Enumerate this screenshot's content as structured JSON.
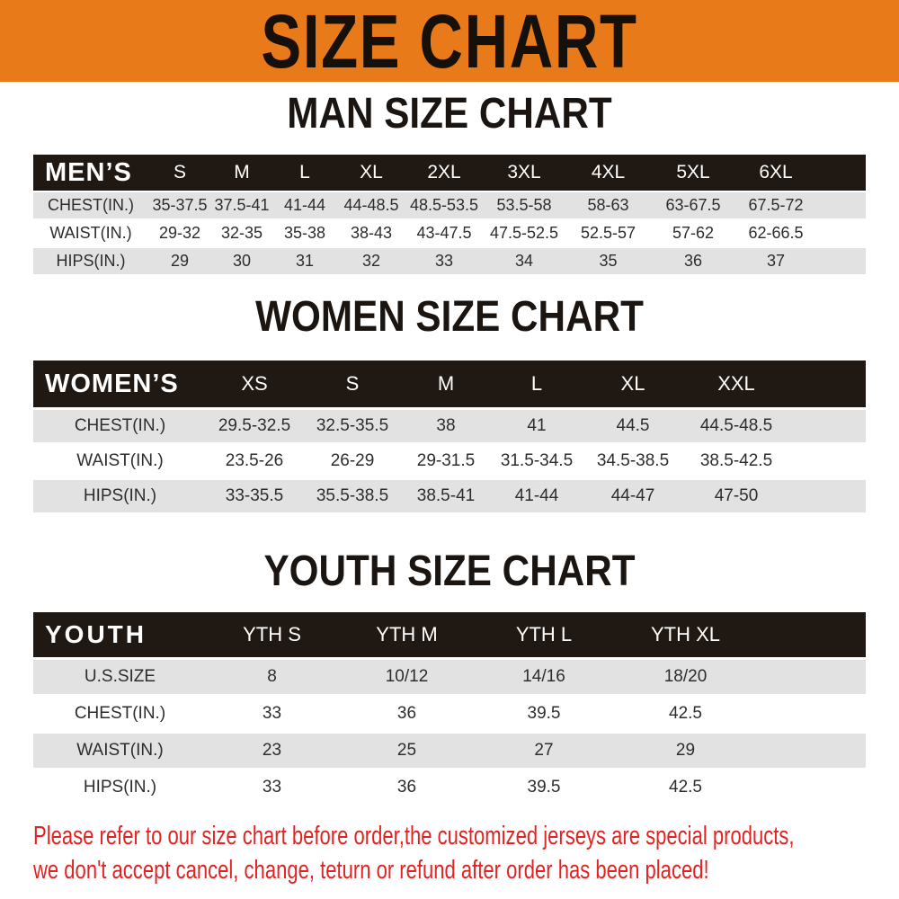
{
  "banner": {
    "title": "SIZE CHART"
  },
  "sections": [
    {
      "heading": "MAN SIZE CHART",
      "table": {
        "label": "MEN’S",
        "columns": [
          "S",
          "M",
          "L",
          "XL",
          "2XL",
          "3XL",
          "4XL",
          "5XL",
          "6XL"
        ],
        "rows": [
          {
            "label": "CHEST(IN.)",
            "values": [
              "35-37.5",
              "37.5-41",
              "41-44",
              "44-48.5",
              "48.5-53.5",
              "53.5-58",
              "58-63",
              "63-67.5",
              "67.5-72"
            ]
          },
          {
            "label": "WAIST(IN.)",
            "values": [
              "29-32",
              "32-35",
              "35-38",
              "38-43",
              "43-47.5",
              "47.5-52.5",
              "52.5-57",
              "57-62",
              "62-66.5"
            ]
          },
          {
            "label": "HIPS(IN.)",
            "values": [
              "29",
              "30",
              "31",
              "32",
              "33",
              "34",
              "35",
              "36",
              "37"
            ]
          }
        ]
      }
    },
    {
      "heading": "WOMEN SIZE CHART",
      "table": {
        "label": "WOMEN’S",
        "columns": [
          "XS",
          "S",
          "M",
          "L",
          "XL",
          "XXL"
        ],
        "rows": [
          {
            "label": "CHEST(IN.)",
            "values": [
              "29.5-32.5",
              "32.5-35.5",
              "38",
              "41",
              "44.5",
              "44.5-48.5"
            ]
          },
          {
            "label": "WAIST(IN.)",
            "values": [
              "23.5-26",
              "26-29",
              "29-31.5",
              "31.5-34.5",
              "34.5-38.5",
              "38.5-42.5"
            ]
          },
          {
            "label": "HIPS(IN.)",
            "values": [
              "33-35.5",
              "35.5-38.5",
              "38.5-41",
              "41-44",
              "44-47",
              "47-50"
            ]
          }
        ]
      }
    },
    {
      "heading": "YOUTH SIZE CHART",
      "table": {
        "label": "YOUTH",
        "columns": [
          "YTH S",
          "YTH M",
          "YTH L",
          "YTH XL"
        ],
        "rows": [
          {
            "label": "U.S.SIZE",
            "values": [
              "8",
              "10/12",
              "14/16",
              "18/20"
            ]
          },
          {
            "label": "CHEST(IN.)",
            "values": [
              "33",
              "36",
              "39.5",
              "42.5"
            ]
          },
          {
            "label": "WAIST(IN.)",
            "values": [
              "23",
              "25",
              "27",
              "29"
            ]
          },
          {
            "label": "HIPS(IN.)",
            "values": [
              "33",
              "36",
              "39.5",
              "42.5"
            ]
          }
        ]
      }
    }
  ],
  "disclaimer": {
    "line1": "Please refer to our size chart before order,the customized jerseys are special products,",
    "line2": "we don't accept cancel, change, teturn or refund after order has been placed!"
  },
  "colors": {
    "banner_orange": "#E87A1A",
    "header_black": "#201913",
    "row_gray": "#E2E2E2",
    "disclaimer_red": "#E32222",
    "title_black": "#16100A"
  }
}
